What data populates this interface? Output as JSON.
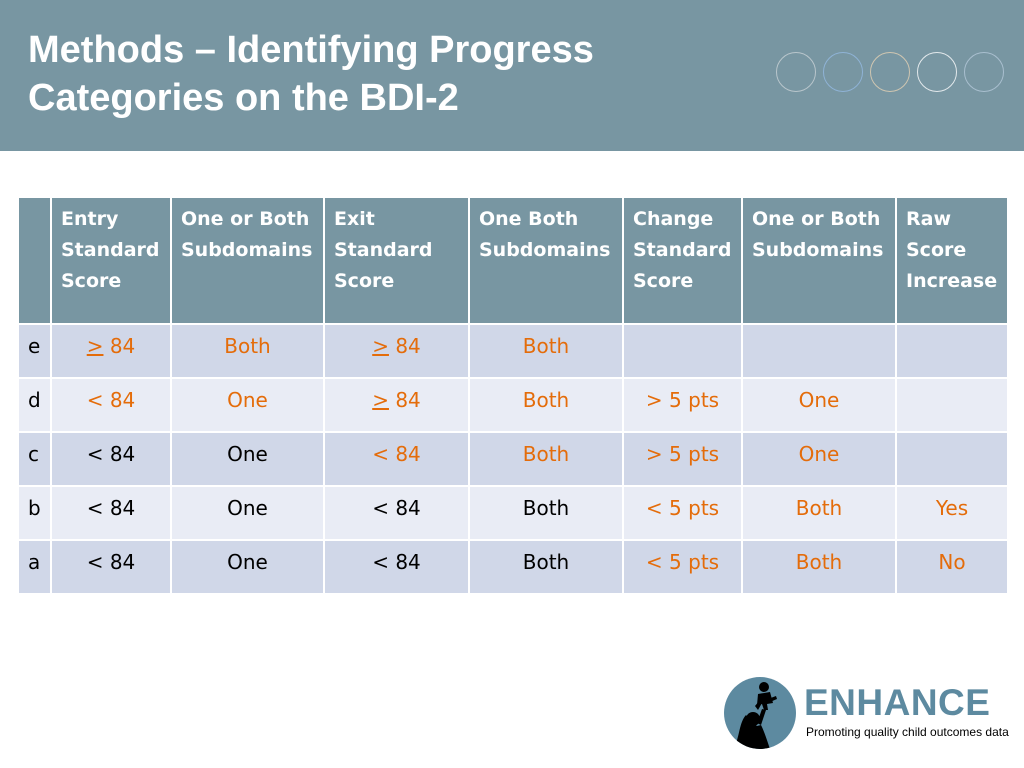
{
  "header": {
    "title_line1": "Methods – Identifying Progress",
    "title_line2": "Categories on the BDI-2"
  },
  "table": {
    "columns": [
      "",
      "Entry Standard Score",
      "One or Both Subdomains",
      "Exit Standard Score",
      "One Both Subdomains",
      "Change Standard Score",
      "One or Both Subdomains",
      "Raw Score Increase"
    ],
    "rows": [
      {
        "label": "e",
        "cells": [
          {
            "prefix": ">",
            "text": " 84",
            "color": "orange"
          },
          {
            "text": "Both",
            "color": "orange"
          },
          {
            "prefix": ">",
            "text": " 84",
            "color": "orange"
          },
          {
            "text": "Both",
            "color": "orange"
          },
          {
            "text": "",
            "color": "black"
          },
          {
            "text": "",
            "color": "black"
          },
          {
            "text": "",
            "color": "black"
          }
        ]
      },
      {
        "label": "d",
        "cells": [
          {
            "text": "< 84",
            "color": "orange"
          },
          {
            "text": "One",
            "color": "orange"
          },
          {
            "prefix": ">",
            "text": " 84",
            "color": "orange"
          },
          {
            "text": "Both",
            "color": "orange"
          },
          {
            "text": "> 5 pts",
            "color": "orange"
          },
          {
            "text": "One",
            "color": "orange"
          },
          {
            "text": "",
            "color": "black"
          }
        ]
      },
      {
        "label": "c",
        "cells": [
          {
            "text": "< 84",
            "color": "black"
          },
          {
            "text": "One",
            "color": "black"
          },
          {
            "text": "< 84",
            "color": "orange"
          },
          {
            "text": "Both",
            "color": "orange"
          },
          {
            "text": "> 5 pts",
            "color": "orange"
          },
          {
            "text": "One",
            "color": "orange"
          },
          {
            "text": "",
            "color": "black"
          }
        ]
      },
      {
        "label": "b",
        "cells": [
          {
            "text": "< 84",
            "color": "black"
          },
          {
            "text": "One",
            "color": "black"
          },
          {
            "text": "< 84",
            "color": "black"
          },
          {
            "text": "Both",
            "color": "black"
          },
          {
            "text": "< 5 pts",
            "color": "orange"
          },
          {
            "text": "Both",
            "color": "orange"
          },
          {
            "text": "Yes",
            "color": "orange"
          }
        ]
      },
      {
        "label": "a",
        "cells": [
          {
            "text": "< 84",
            "color": "black"
          },
          {
            "text": "One",
            "color": "black"
          },
          {
            "text": "< 84",
            "color": "black"
          },
          {
            "text": "Both",
            "color": "black"
          },
          {
            "text": "< 5 pts",
            "color": "orange"
          },
          {
            "text": "Both",
            "color": "orange"
          },
          {
            "text": "No",
            "color": "orange"
          }
        ]
      }
    ]
  },
  "logo": {
    "icon": "parent-lifting-child-icon",
    "name": "ENHANCE",
    "tagline": "Promoting quality child outcomes data"
  },
  "colors": {
    "header_bg": "#7896a2",
    "row_dark": "#d0d7e8",
    "row_light": "#e9ecf5",
    "highlight": "#e46c0a",
    "logo_blue": "#5d8aa0"
  }
}
